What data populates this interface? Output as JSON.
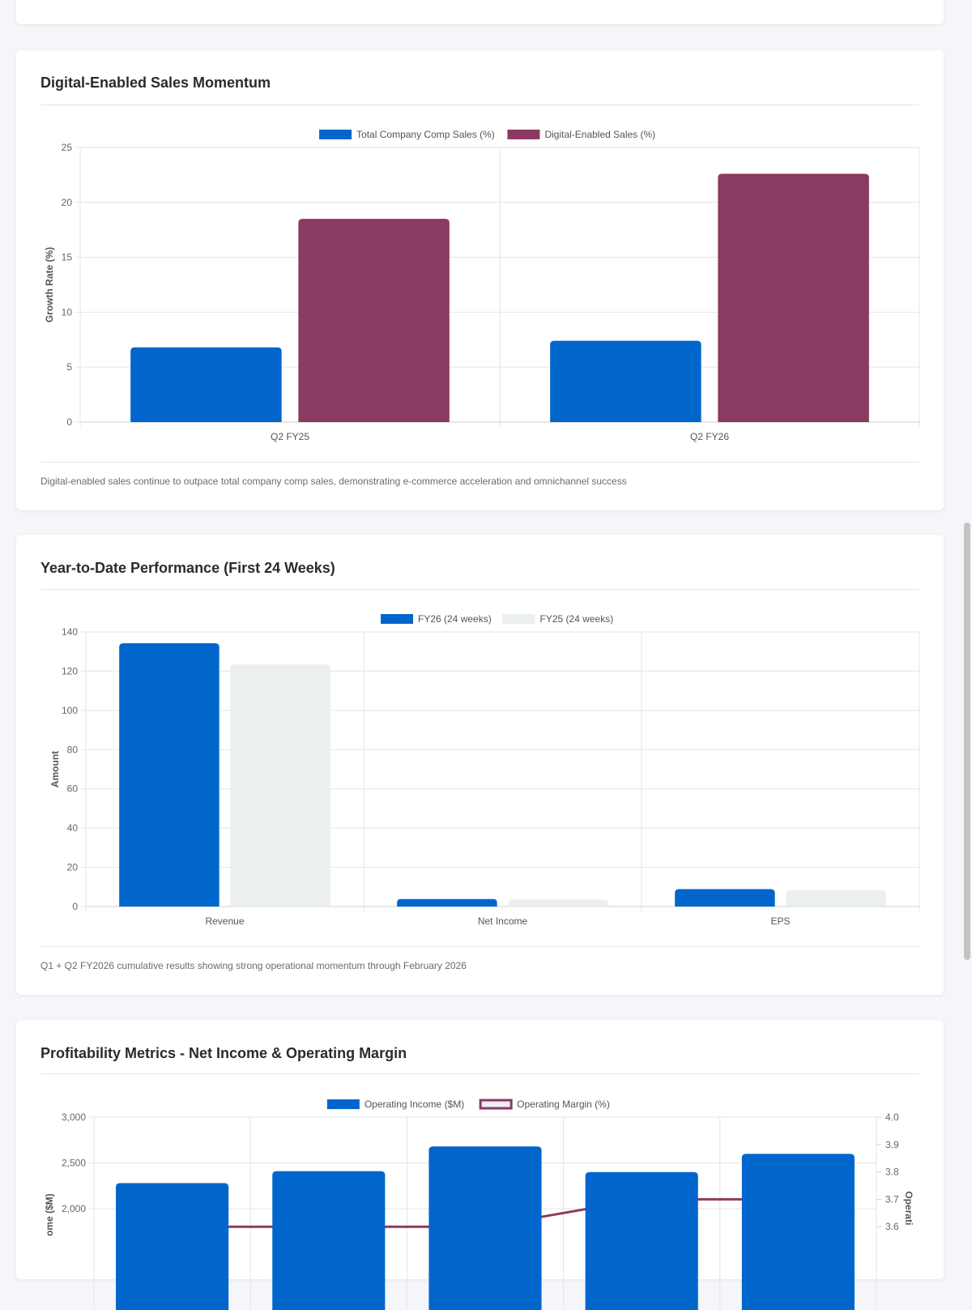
{
  "top_card": {
    "text_partial": ""
  },
  "cards": [
    {
      "title": "Digital-Enabled Sales Momentum",
      "caption": "Digital-enabled sales continue to outpace total company comp sales, demonstrating e-commerce acceleration and omnichannel success"
    },
    {
      "title": "Year-to-Date Performance (First 24 Weeks)",
      "caption": "Q1 + Q2 FY2026 cumulative results showing strong operational momentum through February 2026"
    },
    {
      "title": "Profitability Metrics - Net Income & Operating Margin",
      "caption": ""
    }
  ],
  "colors": {
    "blue": "#0066cc",
    "maroon": "#8b3a62",
    "light_gray": "#eceff0",
    "grid": "#e5e5e5"
  },
  "chart_data": [
    {
      "type": "bar",
      "title": "Digital-Enabled Sales Momentum",
      "categories": [
        "Q2 FY25",
        "Q2 FY26"
      ],
      "series": [
        {
          "name": "Total Company Comp Sales (%)",
          "values": [
            6.8,
            7.4
          ],
          "color": "#0066cc"
        },
        {
          "name": "Digital-Enabled Sales (%)",
          "values": [
            18.5,
            22.6
          ],
          "color": "#8b3a62"
        }
      ],
      "xlabel": "",
      "ylabel": "Growth Rate (%)",
      "ylim": [
        0,
        25
      ],
      "yticks": [
        0,
        5,
        10,
        15,
        20,
        25
      ],
      "ytick_labels": [
        "0",
        "5",
        "10",
        "15",
        "20",
        "25"
      ],
      "legend": "top-center"
    },
    {
      "type": "bar",
      "title": "Year-to-Date Performance (First 24 Weeks)",
      "categories": [
        "Revenue",
        "Net Income",
        "EPS"
      ],
      "series": [
        {
          "name": "FY26 (24 weeks)",
          "values": [
            134.2,
            3.8,
            8.9
          ],
          "color": "#0066cc"
        },
        {
          "name": "FY25 (24 weeks)",
          "values": [
            123.4,
            3.5,
            8.4
          ],
          "color": "#eceff0"
        }
      ],
      "xlabel": "",
      "ylabel": "Amount",
      "ylim": [
        0,
        140
      ],
      "yticks": [
        0,
        20,
        40,
        60,
        80,
        100,
        120,
        140
      ],
      "ytick_labels": [
        "0",
        "20",
        "40",
        "60",
        "80",
        "100",
        "120",
        "140"
      ],
      "legend": "top-center"
    },
    {
      "type": "bar",
      "title": "Profitability Metrics - Net Income & Operating Margin",
      "categories": [
        "",
        "",
        "",
        "",
        ""
      ],
      "series": [
        {
          "name": "Operating Income ($M)",
          "values": [
            2280,
            2410,
            2680,
            2400,
            2600
          ],
          "color": "#0066cc",
          "kind": "bar",
          "axis": "left"
        },
        {
          "name": "Operating Margin (%)",
          "values": [
            3.6,
            3.6,
            3.6,
            3.7,
            3.7
          ],
          "color": "#8b3a62",
          "kind": "line",
          "axis": "right"
        }
      ],
      "ylabel": "Operating Income ($M)",
      "ylabel_visible": "ome ($M)",
      "y2label": "Operating Margin (%)",
      "y2label_visible": "Operati",
      "ylim": [
        0,
        3000
      ],
      "yticks": [
        2000,
        2500,
        3000
      ],
      "ytick_labels": [
        "2,000",
        "2,500",
        "3,000"
      ],
      "y2lim": [
        3.1,
        4.0
      ],
      "y2ticks": [
        3.6,
        3.7,
        3.8,
        3.9,
        4.0
      ],
      "y2tick_labels": [
        "3.6",
        "3.7",
        "3.8",
        "3.9",
        "4.0"
      ],
      "legend": "top-center"
    }
  ]
}
